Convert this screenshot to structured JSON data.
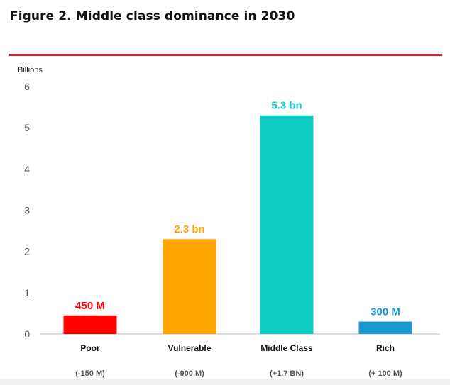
{
  "page": {
    "title": "Figure 2. Middle class dominance in 2030"
  },
  "chart_data": {
    "type": "bar",
    "title": "",
    "xlabel": "",
    "ylabel": "Billions",
    "ylim": [
      0,
      6
    ],
    "yticks": [
      "0",
      "1",
      "2",
      "3",
      "4",
      "5",
      "6"
    ],
    "grid": false,
    "legend": "none",
    "categories": [
      "Poor",
      "Vulnerable",
      "Middle Class",
      "Rich"
    ],
    "values": [
      0.45,
      2.3,
      5.3,
      0.3
    ],
    "data_labels": [
      "450 M",
      "2.3 bn",
      "5.3 bn",
      "300 M"
    ],
    "change_labels": [
      "(-150 M)",
      "(-900 M)",
      "(+1.7 BN)",
      "(+ 100 M)"
    ],
    "colors": [
      "#ff0000",
      "#ffa500",
      "#11cdc1",
      "#1698d0"
    ],
    "axis_color": "#bfbfbf",
    "accent_rule_color": "#c9252c"
  }
}
